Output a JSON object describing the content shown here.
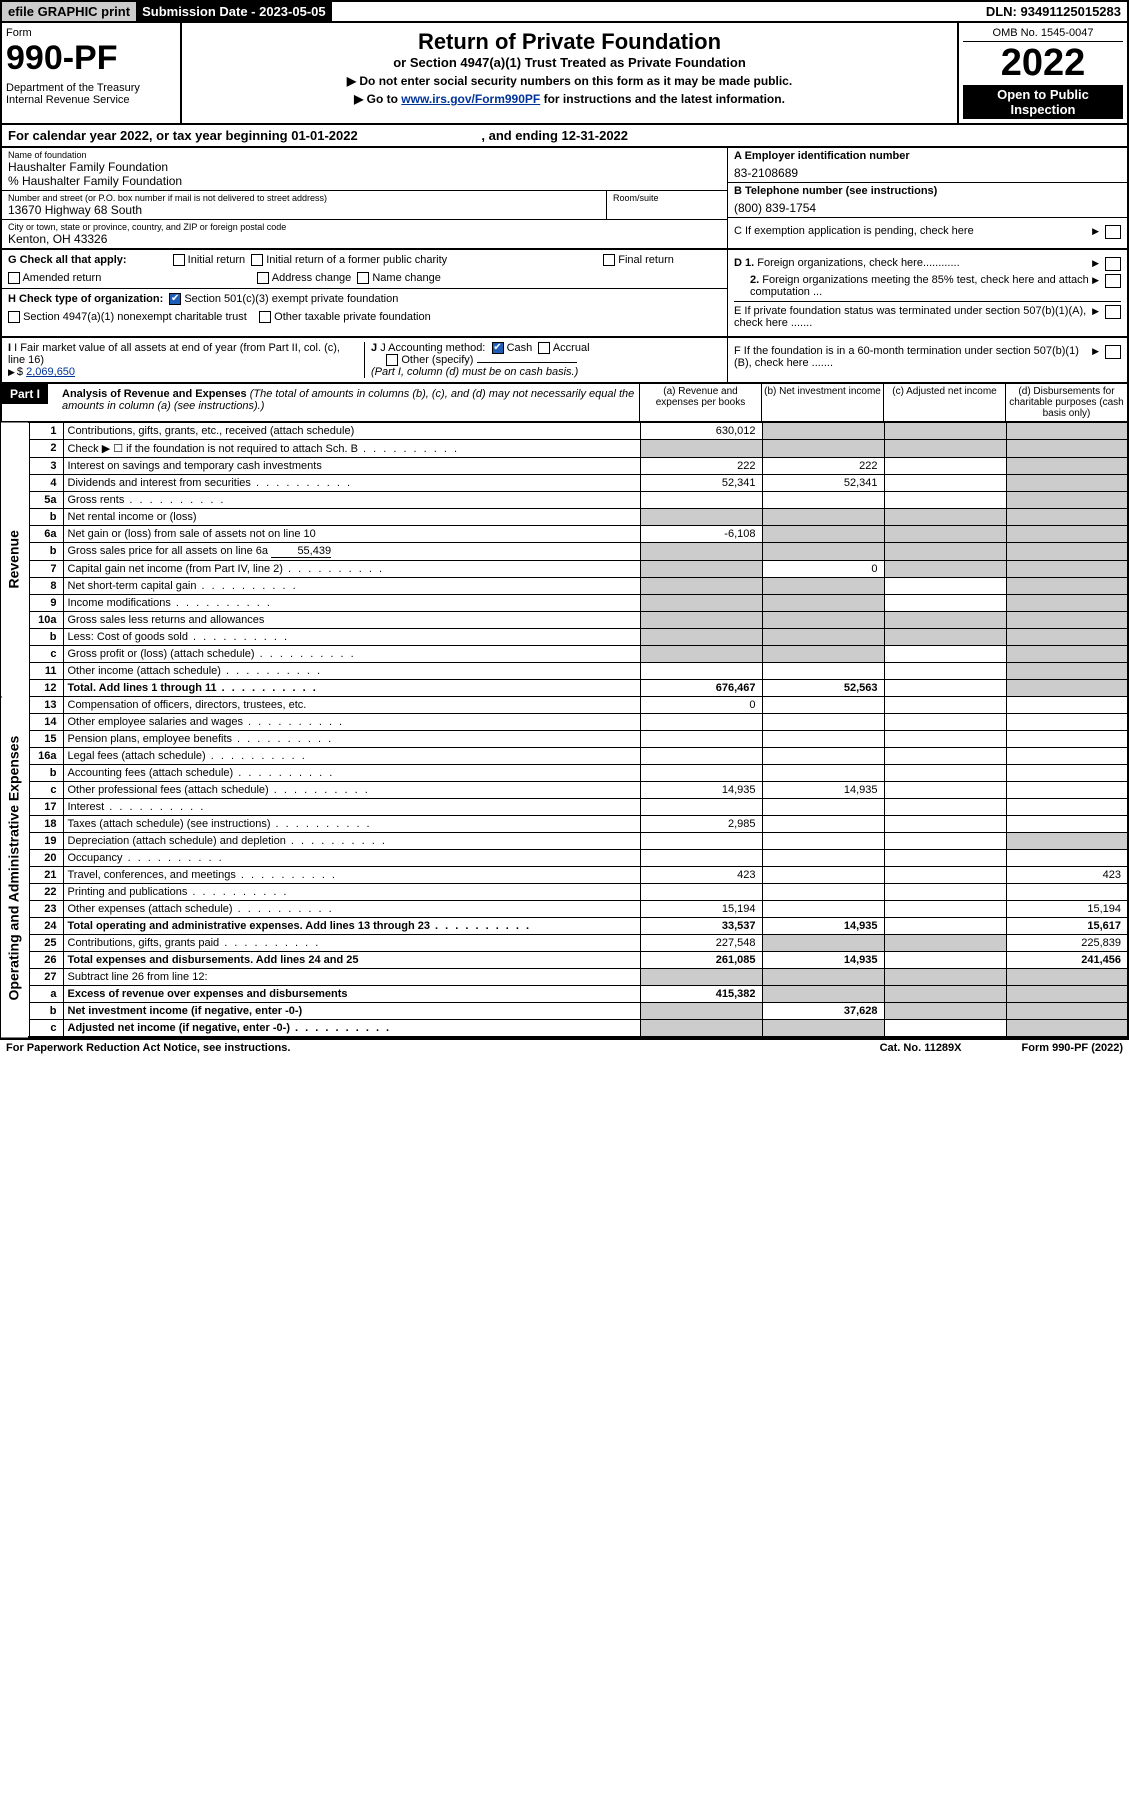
{
  "top": {
    "efile": "efile GRAPHIC print",
    "sub_label": "Submission Date - ",
    "sub_date": "2023-05-05",
    "dln": "DLN: 93491125015283"
  },
  "header": {
    "form_word": "Form",
    "form_no": "990-PF",
    "dept": "Department of the Treasury\nInternal Revenue Service",
    "title": "Return of Private Foundation",
    "subtitle": "or Section 4947(a)(1) Trust Treated as Private Foundation",
    "note1": "▶ Do not enter social security numbers on this form as it may be made public.",
    "note2_pre": "▶ Go to ",
    "note2_link": "www.irs.gov/Form990PF",
    "note2_post": " for instructions and the latest information.",
    "omb": "OMB No. 1545-0047",
    "year": "2022",
    "open": "Open to Public Inspection"
  },
  "cal": {
    "text": "For calendar year 2022, or tax year beginning 01-01-2022",
    "end": ", and ending 12-31-2022"
  },
  "info": {
    "name_lbl": "Name of foundation",
    "name": "Haushalter Family Foundation",
    "care_of": "% Haushalter Family Foundation",
    "addr_lbl": "Number and street (or P.O. box number if mail is not delivered to street address)",
    "addr": "13670 Highway 68 South",
    "room_lbl": "Room/suite",
    "room": "",
    "city_lbl": "City or town, state or province, country, and ZIP or foreign postal code",
    "city": "Kenton, OH  43326",
    "a_lbl": "A Employer identification number",
    "a_val": "83-2108689",
    "b_lbl": "B Telephone number (see instructions)",
    "b_val": "(800) 839-1754",
    "c_lbl": "C If exemption application is pending, check here",
    "d1_lbl": "D 1. Foreign organizations, check here............",
    "d2_lbl": "2. Foreign organizations meeting the 85% test, check here and attach computation ...",
    "e_lbl": "E  If private foundation status was terminated under section 507(b)(1)(A), check here .......",
    "f_lbl": "F  If the foundation is in a 60-month termination under section 507(b)(1)(B), check here .......",
    "g_lbl": "G Check all that apply:",
    "g_opts": [
      "Initial return",
      "Initial return of a former public charity",
      "Final return",
      "Amended return",
      "Address change",
      "Name change"
    ],
    "h_lbl": "H Check type of organization:",
    "h_opts": [
      "Section 501(c)(3) exempt private foundation",
      "Section 4947(a)(1) nonexempt charitable trust",
      "Other taxable private foundation"
    ],
    "i_lbl": "I Fair market value of all assets at end of year (from Part II, col. (c), line 16)",
    "i_val": "2,069,650",
    "j_lbl": "J Accounting method:",
    "j_opts": [
      "Cash",
      "Accrual",
      "Other (specify)"
    ],
    "j_note": "(Part I, column (d) must be on cash basis.)"
  },
  "part1": {
    "label": "Part I",
    "title": "Analysis of Revenue and Expenses",
    "title_note": " (The total of amounts in columns (b), (c), and (d) may not necessarily equal the amounts in column (a) (see instructions).)",
    "cols": [
      "(a)  Revenue and expenses per books",
      "(b)  Net investment income",
      "(c)  Adjusted net income",
      "(d)  Disbursements for charitable purposes (cash basis only)"
    ]
  },
  "sections": {
    "revenue": "Revenue",
    "expenses": "Operating and Administrative Expenses"
  },
  "rows": [
    {
      "n": "1",
      "d": "Contributions, gifts, grants, etc., received (attach schedule)",
      "a": "630,012",
      "b_shade": true,
      "c_shade": true,
      "d_shade": true
    },
    {
      "n": "2",
      "d": "Check ▶ ☐ if the foundation is not required to attach Sch. B",
      "dots": true,
      "a_shade": true,
      "b_shade": true,
      "c_shade": true,
      "d_shade": true
    },
    {
      "n": "3",
      "d": "Interest on savings and temporary cash investments",
      "a": "222",
      "b": "222",
      "d_shade": true
    },
    {
      "n": "4",
      "d": "Dividends and interest from securities",
      "dots": true,
      "a": "52,341",
      "b": "52,341",
      "d_shade": true
    },
    {
      "n": "5a",
      "d": "Gross rents",
      "dots": true,
      "d_shade": true
    },
    {
      "n": "b",
      "d": "Net rental income or (loss)",
      "a_shade": true,
      "b_shade": true,
      "c_shade": true,
      "d_shade": true
    },
    {
      "n": "6a",
      "d": "Net gain or (loss) from sale of assets not on line 10",
      "a": "-6,108",
      "b_shade": true,
      "c_shade": true,
      "d_shade": true
    },
    {
      "n": "b",
      "d": "Gross sales price for all assets on line 6a",
      "mini": "55,439",
      "a_shade": true,
      "b_shade": true,
      "c_shade": true,
      "d_shade": true
    },
    {
      "n": "7",
      "d": "Capital gain net income (from Part IV, line 2)",
      "dots": true,
      "a_shade": true,
      "b": "0",
      "c_shade": true,
      "d_shade": true
    },
    {
      "n": "8",
      "d": "Net short-term capital gain",
      "dots": true,
      "a_shade": true,
      "b_shade": true,
      "d_shade": true
    },
    {
      "n": "9",
      "d": "Income modifications",
      "dots": true,
      "a_shade": true,
      "b_shade": true,
      "d_shade": true
    },
    {
      "n": "10a",
      "d": "Gross sales less returns and allowances",
      "a_shade": true,
      "b_shade": true,
      "c_shade": true,
      "d_shade": true
    },
    {
      "n": "b",
      "d": "Less: Cost of goods sold",
      "dots": true,
      "a_shade": true,
      "b_shade": true,
      "c_shade": true,
      "d_shade": true
    },
    {
      "n": "c",
      "d": "Gross profit or (loss) (attach schedule)",
      "dots": true,
      "a_shade": true,
      "b_shade": true,
      "d_shade": true
    },
    {
      "n": "11",
      "d": "Other income (attach schedule)",
      "dots": true,
      "d_shade": true
    },
    {
      "n": "12",
      "d": "Total. Add lines 1 through 11",
      "dots": true,
      "a": "676,467",
      "b": "52,563",
      "d_shade": true,
      "bold": true
    }
  ],
  "exp_rows": [
    {
      "n": "13",
      "d": "Compensation of officers, directors, trustees, etc.",
      "a": "0"
    },
    {
      "n": "14",
      "d": "Other employee salaries and wages",
      "dots": true
    },
    {
      "n": "15",
      "d": "Pension plans, employee benefits",
      "dots": true
    },
    {
      "n": "16a",
      "d": "Legal fees (attach schedule)",
      "dots": true
    },
    {
      "n": "b",
      "d": "Accounting fees (attach schedule)",
      "dots": true
    },
    {
      "n": "c",
      "d": "Other professional fees (attach schedule)",
      "dots": true,
      "a": "14,935",
      "b": "14,935"
    },
    {
      "n": "17",
      "d": "Interest",
      "dots": true
    },
    {
      "n": "18",
      "d": "Taxes (attach schedule) (see instructions)",
      "dots": true,
      "a": "2,985"
    },
    {
      "n": "19",
      "d": "Depreciation (attach schedule) and depletion",
      "dots": true,
      "d_shade": true
    },
    {
      "n": "20",
      "d": "Occupancy",
      "dots": true
    },
    {
      "n": "21",
      "d": "Travel, conferences, and meetings",
      "dots": true,
      "a": "423",
      "dd": "423"
    },
    {
      "n": "22",
      "d": "Printing and publications",
      "dots": true
    },
    {
      "n": "23",
      "d": "Other expenses (attach schedule)",
      "dots": true,
      "a": "15,194",
      "dd": "15,194"
    },
    {
      "n": "24",
      "d": "Total operating and administrative expenses. Add lines 13 through 23",
      "dots": true,
      "a": "33,537",
      "b": "14,935",
      "dd": "15,617",
      "bold": true
    },
    {
      "n": "25",
      "d": "Contributions, gifts, grants paid",
      "dots": true,
      "a": "227,548",
      "b_shade": true,
      "c_shade": true,
      "dd": "225,839"
    },
    {
      "n": "26",
      "d": "Total expenses and disbursements. Add lines 24 and 25",
      "a": "261,085",
      "b": "14,935",
      "dd": "241,456",
      "bold": true
    },
    {
      "n": "27",
      "d": "Subtract line 26 from line 12:",
      "a_shade": true,
      "b_shade": true,
      "c_shade": true,
      "d_shade": true
    },
    {
      "n": "a",
      "d": "Excess of revenue over expenses and disbursements",
      "a": "415,382",
      "b_shade": true,
      "c_shade": true,
      "d_shade": true,
      "bold": true
    },
    {
      "n": "b",
      "d": "Net investment income (if negative, enter -0-)",
      "a_shade": true,
      "b": "37,628",
      "c_shade": true,
      "d_shade": true,
      "bold": true
    },
    {
      "n": "c",
      "d": "Adjusted net income (if negative, enter -0-)",
      "dots": true,
      "a_shade": true,
      "b_shade": true,
      "d_shade": true,
      "bold": true
    }
  ],
  "footer": {
    "l": "For Paperwork Reduction Act Notice, see instructions.",
    "c": "Cat. No. 11289X",
    "r": "Form 990-PF (2022)"
  }
}
